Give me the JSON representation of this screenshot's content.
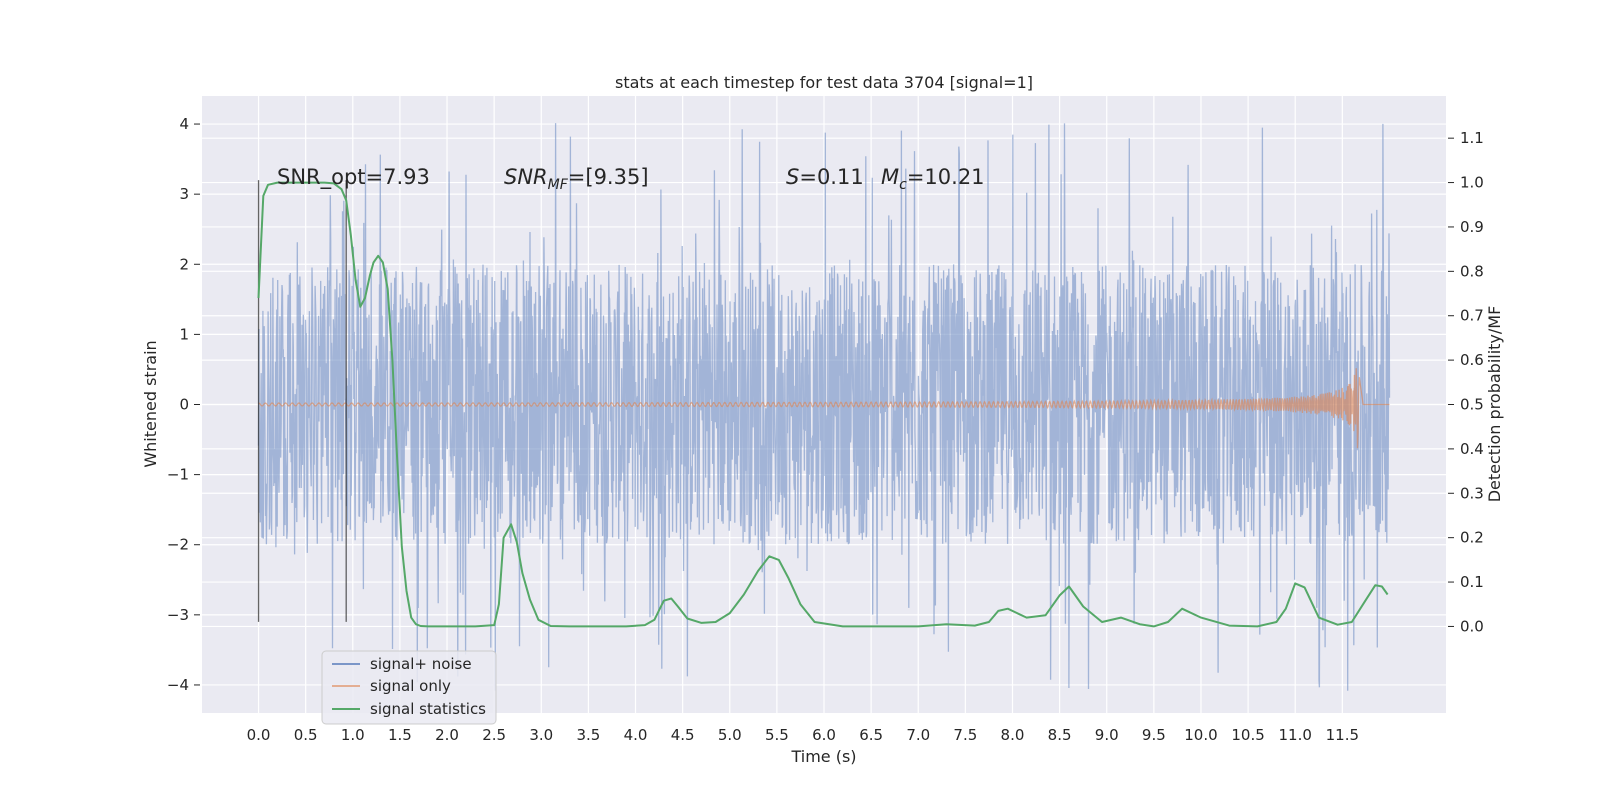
{
  "chart_data": {
    "type": "line",
    "title": "stats at each timestep for test data 3704 [signal=1]",
    "xlabel": "Time (s)",
    "ylabel_left": "Whitened strain",
    "ylabel_right": "Detection probability/MF",
    "xlim": [
      -0.6,
      12.6
    ],
    "ylim_left": [
      -4.4,
      4.4
    ],
    "ylim_right": [
      -0.195,
      1.195
    ],
    "grid": true,
    "background": "#eaeaf2",
    "x_ticks": [
      "0.0",
      "0.5",
      "1.0",
      "1.5",
      "2.0",
      "2.5",
      "3.0",
      "3.5",
      "4.0",
      "4.5",
      "5.0",
      "5.5",
      "6.0",
      "6.5",
      "7.0",
      "7.5",
      "8.0",
      "8.5",
      "9.0",
      "9.5",
      "10.0",
      "10.5",
      "11.0",
      "11.5"
    ],
    "y_ticks_left": [
      "4",
      "3",
      "2",
      "1",
      "0",
      "−1",
      "−2",
      "−3",
      "−4"
    ],
    "y_ticks_right": [
      "1.1",
      "1.0",
      "0.9",
      "0.8",
      "0.7",
      "0.6",
      "0.5",
      "0.4",
      "0.3",
      "0.2",
      "0.1",
      "0.0"
    ],
    "annotations": {
      "snr_opt": "SNR_opt=7.93",
      "snr_mf_sym": "SNR",
      "snr_mf_sub": "MF",
      "snr_mf_val": "=[9.35]",
      "s_sym": "S",
      "s_val": "=0.11",
      "mc_sym": "M",
      "mc_sub": "c",
      "mc_val": "=10.21"
    },
    "vlines_x": [
      0.0,
      0.93
    ],
    "vline_y_range": [
      -3.1,
      3.2
    ],
    "series": [
      {
        "name": "signal+ noise",
        "color": "#7b96c8",
        "kind": "noise",
        "x_range": [
          0.0,
          12.0
        ],
        "envelope": 2.0,
        "peak_max": 4.1
      },
      {
        "name": "signal only",
        "color": "#dd8452",
        "kind": "chirp",
        "x_range": [
          0.0,
          11.68
        ],
        "peak_amp": 0.95,
        "end_x": 11.68
      },
      {
        "name": "signal statistics",
        "color": "#55a868",
        "kind": "line",
        "axis": "right",
        "x": [
          0.0,
          0.05,
          0.1,
          0.2,
          0.3,
          0.5,
          0.7,
          0.8,
          0.88,
          0.93,
          0.98,
          1.03,
          1.08,
          1.13,
          1.18,
          1.22,
          1.27,
          1.32,
          1.37,
          1.42,
          1.47,
          1.52,
          1.57,
          1.62,
          1.67,
          1.72,
          1.8,
          2.0,
          2.3,
          2.5,
          2.55,
          2.6,
          2.68,
          2.74,
          2.8,
          2.88,
          2.97,
          3.1,
          3.3,
          3.6,
          3.9,
          4.1,
          4.2,
          4.3,
          4.38,
          4.45,
          4.55,
          4.7,
          4.85,
          5.0,
          5.15,
          5.3,
          5.42,
          5.52,
          5.62,
          5.75,
          5.9,
          6.2,
          6.6,
          7.0,
          7.3,
          7.6,
          7.75,
          7.85,
          7.95,
          8.15,
          8.35,
          8.5,
          8.6,
          8.75,
          8.95,
          9.15,
          9.35,
          9.5,
          9.65,
          9.8,
          10.0,
          10.3,
          10.6,
          10.8,
          10.9,
          11.0,
          11.1,
          11.25,
          11.45,
          11.6,
          11.75,
          11.85,
          11.92,
          11.98
        ],
        "y": [
          0.74,
          0.97,
          0.995,
          1.0,
          1.0,
          1.0,
          1.0,
          0.998,
          0.985,
          0.96,
          0.88,
          0.78,
          0.72,
          0.74,
          0.79,
          0.82,
          0.835,
          0.82,
          0.76,
          0.6,
          0.38,
          0.18,
          0.08,
          0.02,
          0.005,
          0.001,
          0.0,
          0.0,
          0.0,
          0.003,
          0.05,
          0.2,
          0.23,
          0.19,
          0.12,
          0.06,
          0.015,
          0.001,
          0.0,
          0.0,
          0.0,
          0.003,
          0.015,
          0.058,
          0.063,
          0.045,
          0.018,
          0.008,
          0.01,
          0.03,
          0.072,
          0.125,
          0.158,
          0.15,
          0.11,
          0.05,
          0.01,
          0.0,
          0.0,
          0.0,
          0.005,
          0.002,
          0.01,
          0.035,
          0.04,
          0.02,
          0.025,
          0.07,
          0.09,
          0.045,
          0.01,
          0.02,
          0.005,
          0.0,
          0.01,
          0.04,
          0.02,
          0.002,
          0.0,
          0.01,
          0.04,
          0.097,
          0.088,
          0.02,
          0.004,
          0.01,
          0.06,
          0.093,
          0.09,
          0.072
        ]
      }
    ],
    "legend": {
      "position": "lower-left",
      "labels": [
        "signal+ noise",
        "signal only",
        "signal statistics"
      ]
    }
  }
}
